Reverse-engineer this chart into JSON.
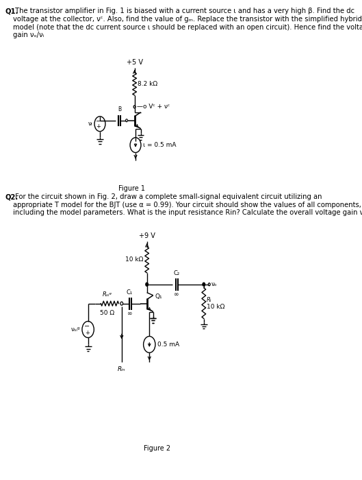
{
  "bg_color": "#ffffff",
  "text_color": "#000000",
  "fig_width": 5.29,
  "fig_height": 7.0,
  "dpi": 100,
  "q1_bold": "Q1.",
  "q1_rest": " The transistor amplifier in Fig. 1 is biased with a current source ι and has a very high β. Find the dc\nvoltage at the collector, νᶜ. Also, find the value of gₘ. Replace the transistor with the simplified hybrid-π\nmodel (note that the dc current source ι should be replaced with an open circuit). Hence find the voltage\ngain νₒ/νᵢ",
  "q2_bold": "Q2.",
  "q2_rest": " For the circuit shown in Fig. 2, draw a complete small-signal equivalent circuit utilizing an\nappropriate T model for the BJT (use α = 0.99). Your circuit should show the values of all components,\nincluding the model parameters. What is the input resistance Rin? Calculate the overall voltage gain νₒ/νₛᵢᵍ",
  "fig1_label": "Figure 1",
  "fig2_label": "Figure 2",
  "f1_vcc": "+5 V",
  "f1_rc": "8.2 kΩ",
  "f1_vc": "—o Vᶜ + νᶜ",
  "f1_I": "ι = 0.5 mA",
  "f1_vi": "νᵢ",
  "f2_vcc": "+9 V",
  "f2_rc": "10 kΩ",
  "f2_q": "Q₁",
  "f2_c1": "C₁",
  "f2_c2": "C₂",
  "f2_rl_label": "Rₗ",
  "f2_rl_val": "10 kΩ",
  "f2_rsig_label": "Rₛᵢᵍ",
  "f2_rsig_val": "50 Ω",
  "f2_vsig": "νₛᵢᵍ",
  "f2_cs": "0.5 mA",
  "f2_vo": "νₒ",
  "f2_rin": "Rᵢₙ",
  "inf": "∞"
}
